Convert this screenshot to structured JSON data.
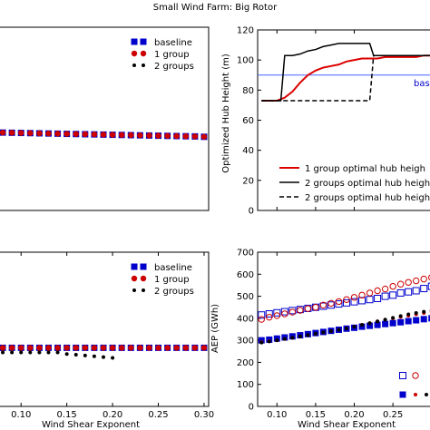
{
  "figure_title": "Small Wind Farm: Big Rotor",
  "colors": {
    "blue": "#0000cc",
    "red": "#cc0000",
    "black": "#000000",
    "baseline_line": "#4466ff"
  },
  "chart_data": [
    {
      "id": "top-left",
      "type": "scatter",
      "xlim": [
        0.075,
        0.305
      ],
      "ylim": [
        0,
        1
      ],
      "xticks": [],
      "yticks": [],
      "legend": {
        "position": "top-right",
        "entries": [
          "baseline",
          "1 group",
          "2 groups"
        ]
      },
      "series": [
        {
          "name": "baseline",
          "marker": "square",
          "color": "#0000cc",
          "x": [
            0.08,
            0.09,
            0.1,
            0.11,
            0.12,
            0.13,
            0.14,
            0.15,
            0.16,
            0.17,
            0.18,
            0.19,
            0.2,
            0.21,
            0.22,
            0.23,
            0.24,
            0.25,
            0.26,
            0.27,
            0.28,
            0.29,
            0.3
          ],
          "y": [
            0.425,
            0.424,
            0.423,
            0.422,
            0.421,
            0.42,
            0.419,
            0.418,
            0.417,
            0.416,
            0.415,
            0.414,
            0.413,
            0.412,
            0.411,
            0.41,
            0.409,
            0.408,
            0.407,
            0.406,
            0.405,
            0.404,
            0.402
          ]
        },
        {
          "name": "1 group",
          "marker": "circle",
          "color": "#cc0000",
          "x": [
            0.08,
            0.09,
            0.1,
            0.11,
            0.12,
            0.13,
            0.14,
            0.15,
            0.16,
            0.17,
            0.18,
            0.19,
            0.2,
            0.21,
            0.22,
            0.23,
            0.24,
            0.25,
            0.26,
            0.27,
            0.28,
            0.29,
            0.3
          ],
          "y": [
            0.425,
            0.424,
            0.423,
            0.422,
            0.421,
            0.42,
            0.419,
            0.418,
            0.417,
            0.416,
            0.415,
            0.414,
            0.413,
            0.412,
            0.411,
            0.41,
            0.409,
            0.408,
            0.407,
            0.406,
            0.405,
            0.404,
            0.402
          ]
        }
      ]
    },
    {
      "id": "top-right",
      "type": "line",
      "xlim": [
        0.075,
        0.305
      ],
      "ylim": [
        0,
        120
      ],
      "ylabel": "Optimized Hub Height (m)",
      "yticks": [
        0,
        20,
        40,
        60,
        80,
        100,
        120
      ],
      "xticks": [
        0.1,
        0.15,
        0.2
      ],
      "baseline_value": 90,
      "baseline_label": "bas",
      "legend": {
        "position": "lower-right",
        "entries": [
          "1 group optimal hub heigh",
          "2 groups optimal hub heigh",
          "2 groups optimal hub heigh"
        ]
      },
      "series": [
        {
          "name": "1 group optimal hub heigh",
          "style": "solid",
          "color": "#dd0000",
          "x": [
            0.08,
            0.1,
            0.11,
            0.12,
            0.13,
            0.14,
            0.15,
            0.16,
            0.17,
            0.18,
            0.19,
            0.2,
            0.21,
            0.22,
            0.23,
            0.24,
            0.25,
            0.26,
            0.27,
            0.28,
            0.29,
            0.3
          ],
          "y": [
            73,
            73,
            75,
            79,
            85,
            90,
            93,
            95,
            96,
            97,
            99,
            100,
            101,
            101,
            101,
            102,
            102,
            102,
            102,
            102,
            103,
            103
          ]
        },
        {
          "name": "2 groups optimal hub heigh",
          "style": "solid",
          "color": "#000000",
          "x": [
            0.08,
            0.1,
            0.105,
            0.11,
            0.12,
            0.13,
            0.14,
            0.15,
            0.16,
            0.17,
            0.18,
            0.19,
            0.2,
            0.21,
            0.22,
            0.225,
            0.23,
            0.24,
            0.25,
            0.26,
            0.27,
            0.28,
            0.29,
            0.3
          ],
          "y": [
            73,
            73,
            73,
            103,
            103,
            104,
            106,
            107,
            109,
            110,
            111,
            111,
            111,
            111,
            111,
            103,
            103,
            103,
            103,
            103,
            103,
            103,
            103,
            103
          ]
        },
        {
          "name": "2 groups optimal hub heigh",
          "style": "dashed",
          "color": "#000000",
          "x": [
            0.08,
            0.1,
            0.11,
            0.12,
            0.13,
            0.14,
            0.15,
            0.16,
            0.17,
            0.18,
            0.19,
            0.2,
            0.21,
            0.22,
            0.225,
            0.23,
            0.24,
            0.25,
            0.26,
            0.27,
            0.28,
            0.29,
            0.3
          ],
          "y": [
            73,
            73,
            73,
            73,
            73,
            73,
            73,
            73,
            73,
            73,
            73,
            73,
            73,
            73,
            103,
            103,
            103,
            103,
            103,
            103,
            103,
            103,
            103
          ]
        }
      ]
    },
    {
      "id": "bottom-left",
      "type": "scatter",
      "xlim": [
        0.075,
        0.305
      ],
      "ylim": [
        0,
        1
      ],
      "xlabel": "Wind Shear Exponent",
      "xticks": [
        0.1,
        0.15,
        0.2,
        0.25,
        0.3
      ],
      "xtick_labels": [
        "0.10",
        "0.15",
        "0.20",
        "0.25",
        "0.30"
      ],
      "legend": {
        "position": "top-right",
        "entries": [
          "baseline",
          "1 group",
          "2 groups"
        ]
      },
      "series": [
        {
          "name": "baseline",
          "marker": "square",
          "color": "#0000cc",
          "x": [
            0.08,
            0.09,
            0.1,
            0.11,
            0.12,
            0.13,
            0.14,
            0.15,
            0.16,
            0.17,
            0.18,
            0.19,
            0.2,
            0.21,
            0.22,
            0.23,
            0.24,
            0.25,
            0.26,
            0.27,
            0.28,
            0.29,
            0.3
          ],
          "y": [
            0.38,
            0.38,
            0.38,
            0.38,
            0.38,
            0.38,
            0.38,
            0.38,
            0.38,
            0.38,
            0.38,
            0.38,
            0.38,
            0.38,
            0.38,
            0.38,
            0.38,
            0.38,
            0.38,
            0.38,
            0.38,
            0.38,
            0.38
          ]
        },
        {
          "name": "1 group",
          "marker": "circle",
          "color": "#cc0000",
          "x": [
            0.08,
            0.09,
            0.1,
            0.11,
            0.12,
            0.13,
            0.14,
            0.15,
            0.16,
            0.17,
            0.18,
            0.19,
            0.2,
            0.21,
            0.22,
            0.23,
            0.24,
            0.25,
            0.26,
            0.27,
            0.28,
            0.29,
            0.3
          ],
          "y": [
            0.38,
            0.38,
            0.38,
            0.38,
            0.38,
            0.38,
            0.38,
            0.38,
            0.38,
            0.38,
            0.38,
            0.38,
            0.38,
            0.38,
            0.38,
            0.38,
            0.38,
            0.38,
            0.38,
            0.38,
            0.38,
            0.38,
            0.38
          ]
        },
        {
          "name": "2 groups",
          "marker": "dot",
          "color": "#000000",
          "x": [
            0.08,
            0.09,
            0.1,
            0.11,
            0.12,
            0.13,
            0.14,
            0.15,
            0.16,
            0.17,
            0.18,
            0.19,
            0.2
          ],
          "y": [
            0.35,
            0.35,
            0.35,
            0.35,
            0.35,
            0.35,
            0.35,
            0.34,
            0.335,
            0.33,
            0.325,
            0.32,
            0.315
          ]
        }
      ]
    },
    {
      "id": "bottom-right",
      "type": "scatter",
      "xlim": [
        0.075,
        0.305
      ],
      "ylim": [
        0,
        700
      ],
      "xlabel": "Wind Shear Exponent",
      "ylabel": "AEP (GWh)",
      "yticks": [
        0,
        100,
        200,
        300,
        400,
        500,
        600,
        700
      ],
      "xticks": [
        0.1,
        0.15,
        0.2,
        0.25
      ],
      "xtick_labels": [
        "0.10",
        "0.15",
        "0.20",
        "0.25"
      ],
      "legend": {
        "position": "lower-right",
        "entries": []
      },
      "series": [
        {
          "name": "",
          "marker": "square-open",
          "color": "#0000cc",
          "x": [
            0.08,
            0.09,
            0.1,
            0.11,
            0.12,
            0.13,
            0.14,
            0.15,
            0.16,
            0.17,
            0.18,
            0.19,
            0.2,
            0.21,
            0.22,
            0.23,
            0.24,
            0.25,
            0.26,
            0.27,
            0.28,
            0.29,
            0.3
          ],
          "y": [
            415,
            420,
            425,
            430,
            435,
            440,
            445,
            450,
            455,
            460,
            465,
            470,
            475,
            480,
            485,
            490,
            500,
            505,
            515,
            520,
            525,
            535,
            545
          ]
        },
        {
          "name": "",
          "marker": "circle-open",
          "color": "#cc0000",
          "x": [
            0.08,
            0.09,
            0.1,
            0.11,
            0.12,
            0.13,
            0.14,
            0.15,
            0.16,
            0.17,
            0.18,
            0.19,
            0.2,
            0.21,
            0.22,
            0.23,
            0.24,
            0.25,
            0.26,
            0.27,
            0.28,
            0.29,
            0.3
          ],
          "y": [
            395,
            405,
            412,
            420,
            428,
            436,
            444,
            450,
            460,
            468,
            476,
            485,
            495,
            505,
            515,
            525,
            533,
            545,
            555,
            563,
            570,
            578,
            585
          ]
        },
        {
          "name": "",
          "marker": "square",
          "color": "#0000cc",
          "x": [
            0.08,
            0.09,
            0.1,
            0.11,
            0.12,
            0.13,
            0.14,
            0.15,
            0.16,
            0.17,
            0.18,
            0.19,
            0.2,
            0.21,
            0.22,
            0.23,
            0.24,
            0.25,
            0.26,
            0.27,
            0.28,
            0.29,
            0.3
          ],
          "y": [
            300,
            303,
            308,
            313,
            318,
            323,
            328,
            333,
            338,
            343,
            348,
            353,
            357,
            362,
            366,
            370,
            374,
            378,
            382,
            387,
            391,
            396,
            400
          ]
        },
        {
          "name": "",
          "marker": "dot",
          "color": "#cc0000",
          "x": [
            0.08,
            0.09,
            0.1,
            0.11,
            0.12,
            0.13,
            0.14,
            0.15,
            0.16,
            0.17,
            0.18,
            0.19,
            0.2,
            0.21,
            0.22,
            0.23,
            0.24,
            0.25,
            0.26,
            0.27,
            0.28,
            0.29,
            0.3
          ],
          "y": [
            292,
            296,
            300,
            306,
            312,
            318,
            324,
            330,
            336,
            342,
            348,
            354,
            362,
            370,
            378,
            386,
            394,
            400,
            406,
            412,
            418,
            424,
            430
          ]
        },
        {
          "name": "",
          "marker": "dot",
          "color": "#000000",
          "x": [
            0.08,
            0.09,
            0.1,
            0.11,
            0.12,
            0.13,
            0.14,
            0.15,
            0.16,
            0.17,
            0.18,
            0.19,
            0.2,
            0.21,
            0.22,
            0.23,
            0.24,
            0.25,
            0.26,
            0.27,
            0.28,
            0.29,
            0.3
          ],
          "y": [
            290,
            295,
            300,
            306,
            312,
            318,
            324,
            330,
            336,
            342,
            348,
            354,
            362,
            370,
            378,
            386,
            394,
            402,
            410,
            418,
            424,
            430,
            436
          ]
        }
      ]
    }
  ]
}
